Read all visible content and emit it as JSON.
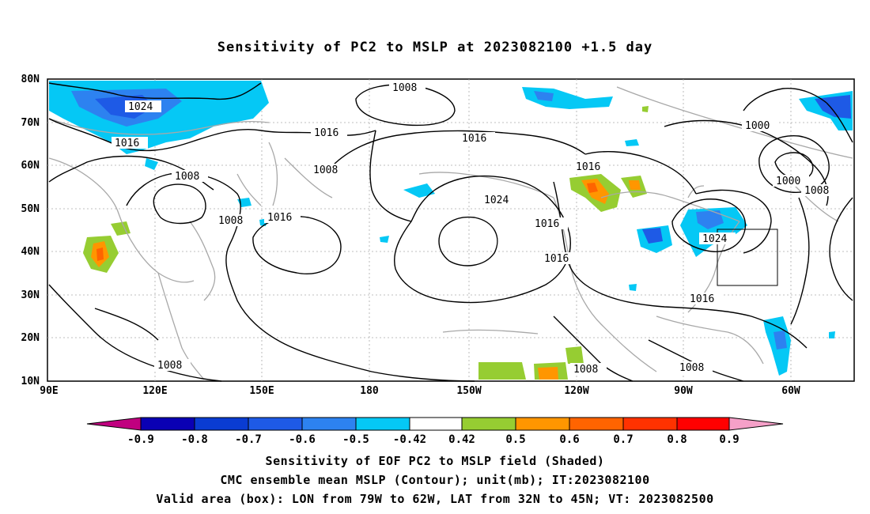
{
  "title": "Sensitivity of PC2 to MSLP at 2023082100 +1.5 day",
  "axes": {
    "lat_labels": [
      "80N",
      "70N",
      "60N",
      "50N",
      "40N",
      "30N",
      "20N",
      "10N"
    ],
    "lon_labels": [
      "90E",
      "120E",
      "150E",
      "180",
      "150W",
      "120W",
      "90W",
      "60W"
    ]
  },
  "contour_labels": [
    "1008",
    "1024",
    "1016",
    "1016",
    "1008",
    "1016",
    "1008",
    "1008",
    "1016",
    "1016",
    "1024",
    "1016",
    "1016",
    "1000",
    "1000",
    "1008",
    "1024",
    "1016",
    "1008",
    "1008",
    "1008"
  ],
  "colorbar": {
    "labels": [
      "-0.9",
      "-0.8",
      "-0.7",
      "-0.6",
      "-0.5",
      "-0.42",
      "0.42",
      "0.5",
      "0.6",
      "0.7",
      "0.8",
      "0.9"
    ],
    "colors": [
      "#c0007f",
      "#0a00b4",
      "#0a3cd2",
      "#1e5ae6",
      "#2d82f0",
      "#05c8f5",
      "#ffffff",
      "#96cd32",
      "#ff9600",
      "#ff6400",
      "#ff3200",
      "#ff0000",
      "#f5a0c8"
    ]
  },
  "footer": {
    "line1": "Sensitivity of EOF PC2 to MSLP field (Shaded)",
    "line2": "CMC ensemble mean MSLP (Contour); unit(mb); IT:2023082100",
    "line3": "Valid area (box): LON from 79W to 62W, LAT from 32N to 45N; VT: 2023082500"
  }
}
